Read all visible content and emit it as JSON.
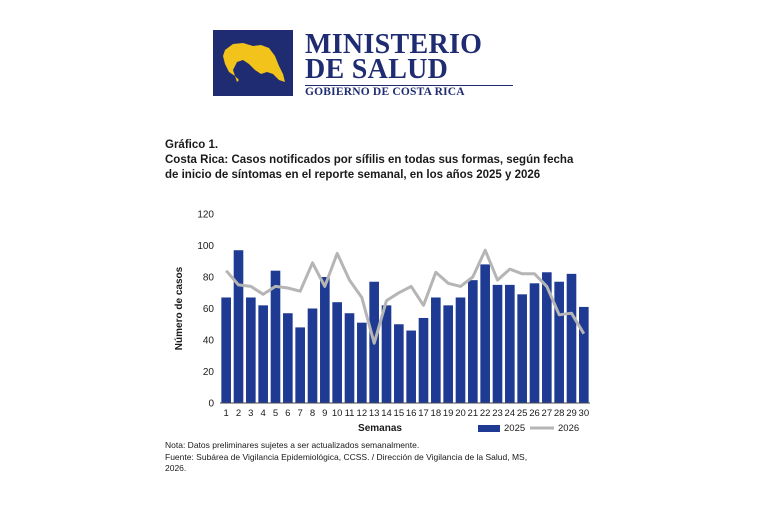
{
  "logo": {
    "line1": "MINISTERIO",
    "line2": "DE SALUD",
    "line3": "GOBIERNO DE COSTA RICA",
    "map_icon": "costa-rica-map-icon",
    "box_color": "#1f2c72",
    "map_color": "#f2c31a"
  },
  "caption": {
    "label": "Gráfico 1.",
    "title_line1": "Costa Rica: Casos notificados por sífilis en todas sus formas, según fecha",
    "title_line2": "de inicio de síntomas en el reporte semanal, en los años 2025 y 2026"
  },
  "chart_data": {
    "type": "bar",
    "title": "",
    "xlabel": "Semanas",
    "ylabel": "Número de casos",
    "ylim": [
      0,
      120
    ],
    "yticks": [
      0,
      20,
      40,
      60,
      80,
      100,
      120
    ],
    "categories": [
      "1",
      "2",
      "3",
      "4",
      "5",
      "6",
      "7",
      "8",
      "9",
      "10",
      "11",
      "12",
      "13",
      "14",
      "15",
      "16",
      "17",
      "18",
      "19",
      "20",
      "21",
      "22",
      "23",
      "24",
      "25",
      "26",
      "27",
      "28",
      "29",
      "30"
    ],
    "series": [
      {
        "name": "2025",
        "type": "bar",
        "color": "#1f3a93",
        "values": [
          67,
          97,
          67,
          62,
          84,
          57,
          48,
          60,
          80,
          64,
          57,
          51,
          77,
          62,
          50,
          46,
          54,
          67,
          62,
          67,
          78,
          88,
          75,
          75,
          69,
          76,
          83,
          77,
          82,
          61
        ]
      },
      {
        "name": "2026",
        "type": "line",
        "color": "#b5b5b5",
        "values": [
          84,
          75,
          74,
          69,
          74,
          73,
          71,
          89,
          74,
          95,
          78,
          67,
          38,
          65,
          70,
          74,
          62,
          83,
          76,
          74,
          80,
          97,
          78,
          85,
          82,
          82,
          74,
          56,
          57,
          44
        ]
      }
    ],
    "legend_position": "bottom-right",
    "grid": false
  },
  "notes": {
    "line1": "Nota: Datos preliminares sujetes a ser actualizados semanalmente.",
    "line2": "Fuente: Subárea de Vigilancia Epidemiológica, CCSS. / Dirección de Vigilancia de la Salud, MS,",
    "line3": "2026."
  }
}
